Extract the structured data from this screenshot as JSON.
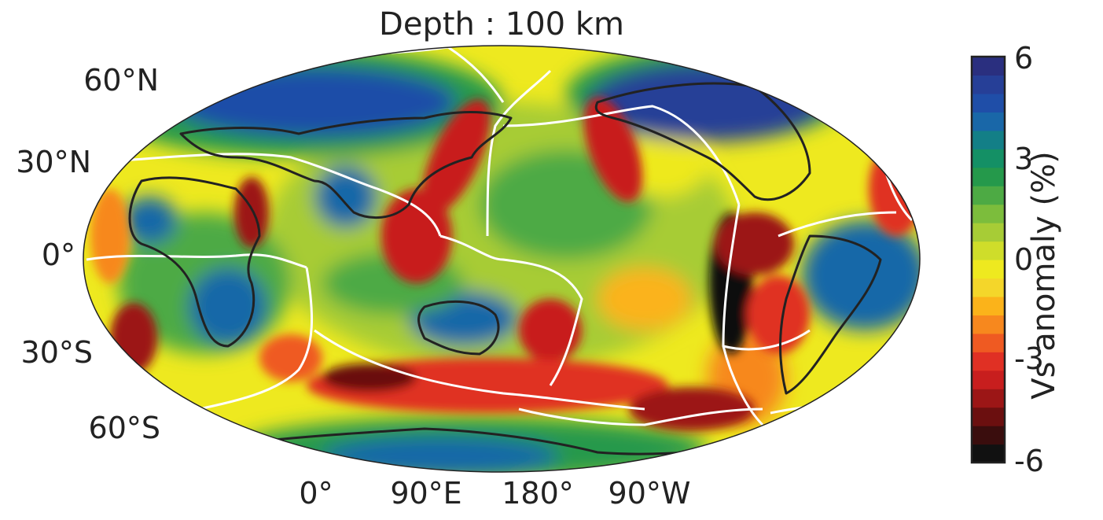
{
  "title": "Depth : 100 km",
  "latitude_labels": [
    "60°N",
    "30°N",
    "0°",
    "30°S",
    "60°S"
  ],
  "longitude_labels": [
    "0°",
    "90°E",
    "180°",
    "90°W"
  ],
  "colorbar": {
    "label": "Vs anomaly (%)",
    "ticks": [
      "6",
      "3",
      "0",
      "-3",
      "-6"
    ],
    "range": [
      -6,
      6
    ],
    "colors": [
      "#111111",
      "#3a0d0d",
      "#6b0f0f",
      "#9c1616",
      "#c81e1e",
      "#e03024",
      "#ef5a22",
      "#f7881e",
      "#fbb31a",
      "#f4d62a",
      "#eee91f",
      "#cfdd2a",
      "#a7cc36",
      "#7cbd3c",
      "#4daa44",
      "#25994b",
      "#149065",
      "#137f87",
      "#1967a8",
      "#1f4ea8",
      "#263f97",
      "#2a2f7f"
    ]
  },
  "map": {
    "projection": "Robinson",
    "center_longitude": "150°E",
    "coastline_color": "#222222",
    "plate_boundary_color": "#ffffff"
  }
}
